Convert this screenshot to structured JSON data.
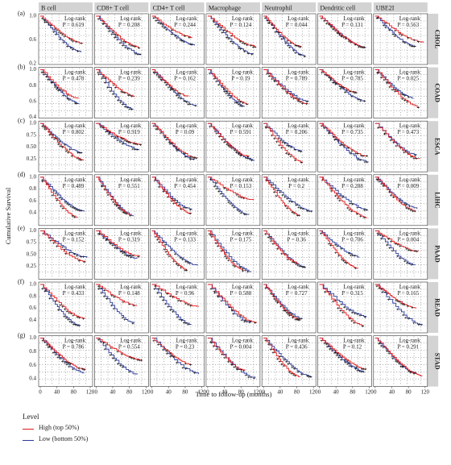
{
  "y_axis_title": "Cumulative Survival",
  "x_axis_title": "Time to follow-up (months)",
  "legend": {
    "title": "Level",
    "items": [
      {
        "label": "High (top 50%)",
        "color": "#e41a1c"
      },
      {
        "label": "Low (bottom 50%)",
        "color": "#2b3a9a"
      }
    ]
  },
  "chart_data": {
    "type": "line",
    "kind": "kaplan-meier-grid",
    "columns": [
      "B cell",
      "CD8+ T cell",
      "CD4+ T cell",
      "Macrophage",
      "Neutrophil",
      "Dendritic cell",
      "UBE2I"
    ],
    "x_ticks": [
      "0",
      "40",
      "80",
      "120"
    ],
    "xlim": [
      0,
      120
    ],
    "grid": "dotted",
    "test_label": "Log-rank",
    "rows": [
      {
        "letter": "(a)",
        "cancer": "CHOL",
        "ylim": [
          0.2,
          1.0
        ],
        "y_ticks": [
          "1.0",
          "0.6",
          "0.2"
        ],
        "p_values": [
          "P = 0.619",
          "P = 0.208",
          "P = 0.244",
          "P = 0.124",
          "P = 0.044",
          "P = 0.131",
          "P = 0.563"
        ]
      },
      {
        "letter": "(b)",
        "cancer": "COAD",
        "ylim": [
          0.4,
          1.0
        ],
        "y_ticks": [
          "1.0",
          "0.8",
          "0.6",
          "0.4"
        ],
        "p_values": [
          "P = 0.478",
          "P = 0.239",
          "P = 0.162",
          "P = 0.19",
          "P = 0.789",
          "P = 0.785",
          "P = 0.025"
        ]
      },
      {
        "letter": "(c)",
        "cancer": "ESCA",
        "ylim": [
          0.0,
          1.0
        ],
        "y_ticks": [
          "1.0",
          "0.75",
          "0.50",
          "0.25"
        ],
        "p_values": [
          "P = 0.802",
          "P = 0.919",
          "P = 0.09",
          "P = 0.591",
          "P = 0.206",
          "P = 0.735",
          "P = 0.473"
        ]
      },
      {
        "letter": "(d)",
        "cancer": "LIHC",
        "ylim": [
          0.2,
          1.0
        ],
        "y_ticks": [
          "1.0",
          "0.8",
          "0.6",
          "0.4"
        ],
        "p_values": [
          "P = 0.489",
          "P = 0.551",
          "P = 0.454",
          "P = 0.153",
          "P = 0.2",
          "P = 0.288",
          "P = 0.009"
        ]
      },
      {
        "letter": "(e)",
        "cancer": "PAAD",
        "ylim": [
          0.0,
          1.0
        ],
        "y_ticks": [
          "1.0",
          "0.75",
          "0.50",
          "0.25"
        ],
        "p_values": [
          "P = 0.152",
          "P = 0.319",
          "P = 0.133",
          "P = 0.175",
          "P = 0.36",
          "P = 0.706",
          "P = 0.004"
        ]
      },
      {
        "letter": "(f)",
        "cancer": "READ",
        "ylim": [
          0.2,
          1.0
        ],
        "y_ticks": [
          "1.0",
          "0.8",
          "0.6",
          "0.4"
        ],
        "p_values": [
          "P = 0.433",
          "P = 0.148",
          "P = 0.96",
          "P = 0.588",
          "P = 0.727",
          "P = 0.315",
          "P = 0.165"
        ]
      },
      {
        "letter": "(g)",
        "cancer": "STAD",
        "ylim": [
          0.3,
          1.0
        ],
        "y_ticks": [
          "1.0",
          "0.8",
          "0.6",
          "0.4"
        ],
        "p_values": [
          "P = 0.786",
          "P = 0.554",
          "P = 0.23",
          "P = 0.004",
          "P = 0.436",
          "P = 0.12",
          "P = 0.291"
        ]
      }
    ]
  }
}
